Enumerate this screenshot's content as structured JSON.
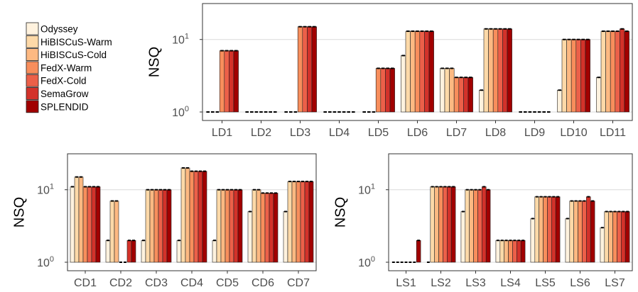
{
  "colors": {
    "series": [
      "#FFF2DE",
      "#FDD9A8",
      "#FDB982",
      "#F88E5C",
      "#EC6049",
      "#D3322A",
      "#A10000"
    ],
    "grid": "#d9d9d9",
    "panel_border": "#333333"
  },
  "legend": {
    "placement": "top-left",
    "items": [
      "Odyssey",
      "HiBISCuS-Warm",
      "HiBISCuS-Cold",
      "FedX-Warm",
      "FedX-Cold",
      "SemaGrow",
      "SPLENDID"
    ]
  },
  "chart_data": [
    {
      "type": "bar",
      "scale": "log10",
      "ylabel": "NSQ",
      "ylim": [
        1,
        25
      ],
      "yticks": [
        {
          "value": 1,
          "base": "10",
          "exp": "0"
        },
        {
          "value": 10,
          "base": "10",
          "exp": "1"
        }
      ],
      "categories": [
        "LD1",
        "LD2",
        "LD3",
        "LD4",
        "LD5",
        "LD6",
        "LD7",
        "LD8",
        "LD9",
        "LD10",
        "LD11"
      ],
      "series": [
        {
          "name": "Odyssey",
          "values": [
            1,
            1,
            1,
            1,
            1,
            6,
            4,
            2,
            1,
            2,
            3
          ]
        },
        {
          "name": "HiBISCuS-Warm",
          "values": [
            1,
            1,
            1,
            1,
            1,
            13,
            4,
            14,
            1,
            10,
            13
          ]
        },
        {
          "name": "HiBISCuS-Cold",
          "values": [
            1,
            1,
            1,
            1,
            1,
            13,
            4,
            14,
            1,
            10,
            13
          ]
        },
        {
          "name": "FedX-Warm",
          "values": [
            7,
            1,
            15,
            1,
            4,
            13,
            3,
            14,
            1,
            10,
            13
          ]
        },
        {
          "name": "FedX-Cold",
          "values": [
            7,
            1,
            15,
            1,
            4,
            13,
            3,
            14,
            1,
            10,
            13
          ]
        },
        {
          "name": "SemaGrow",
          "values": [
            7,
            1,
            15,
            1,
            4,
            13,
            3,
            14,
            1,
            10,
            14
          ]
        },
        {
          "name": "SPLENDID",
          "values": [
            7,
            1,
            15,
            1,
            4,
            13,
            3,
            14,
            1,
            10,
            13
          ]
        }
      ]
    },
    {
      "type": "bar",
      "scale": "log10",
      "ylabel": "NSQ",
      "ylim": [
        1,
        25
      ],
      "yticks": [
        {
          "value": 1,
          "base": "10",
          "exp": "0"
        },
        {
          "value": 10,
          "base": "10",
          "exp": "1"
        }
      ],
      "categories": [
        "CD1",
        "CD2",
        "CD3",
        "CD4",
        "CD5",
        "CD6",
        "CD7"
      ],
      "series": [
        {
          "name": "Odyssey",
          "values": [
            11,
            2,
            2,
            2,
            2,
            5,
            5
          ]
        },
        {
          "name": "HiBISCuS-Warm",
          "values": [
            15,
            7,
            10,
            20,
            10,
            10,
            13
          ]
        },
        {
          "name": "HiBISCuS-Cold",
          "values": [
            15,
            7,
            10,
            20,
            10,
            10,
            13
          ]
        },
        {
          "name": "FedX-Warm",
          "values": [
            11,
            1,
            10,
            18,
            10,
            9,
            13
          ]
        },
        {
          "name": "FedX-Cold",
          "values": [
            11,
            1,
            10,
            18,
            10,
            9,
            13
          ]
        },
        {
          "name": "SemaGrow",
          "values": [
            11,
            2,
            10,
            18,
            10,
            9,
            13
          ]
        },
        {
          "name": "SPLENDID",
          "values": [
            11,
            2,
            10,
            18,
            10,
            9,
            13
          ]
        }
      ]
    },
    {
      "type": "bar",
      "scale": "log10",
      "ylabel": "NSQ",
      "ylim": [
        1,
        25
      ],
      "yticks": [
        {
          "value": 1,
          "base": "10",
          "exp": "0"
        },
        {
          "value": 10,
          "base": "10",
          "exp": "1"
        }
      ],
      "categories": [
        "LS1",
        "LS2",
        "LS3",
        "LS4",
        "LS5",
        "LS6",
        "LS7"
      ],
      "series": [
        {
          "name": "Odyssey",
          "values": [
            1,
            1,
            5,
            2,
            4,
            4,
            3
          ]
        },
        {
          "name": "HiBISCuS-Warm",
          "values": [
            1,
            11,
            10,
            2,
            8,
            7,
            5
          ]
        },
        {
          "name": "HiBISCuS-Cold",
          "values": [
            1,
            11,
            10,
            2,
            8,
            7,
            5
          ]
        },
        {
          "name": "FedX-Warm",
          "values": [
            1,
            11,
            10,
            2,
            8,
            7,
            5
          ]
        },
        {
          "name": "FedX-Cold",
          "values": [
            1,
            11,
            10,
            2,
            8,
            7,
            5
          ]
        },
        {
          "name": "SemaGrow",
          "values": [
            1,
            11,
            11,
            2,
            8,
            8,
            5
          ]
        },
        {
          "name": "SPLENDID",
          "values": [
            2,
            11,
            10,
            2,
            8,
            7,
            5
          ]
        }
      ]
    }
  ]
}
